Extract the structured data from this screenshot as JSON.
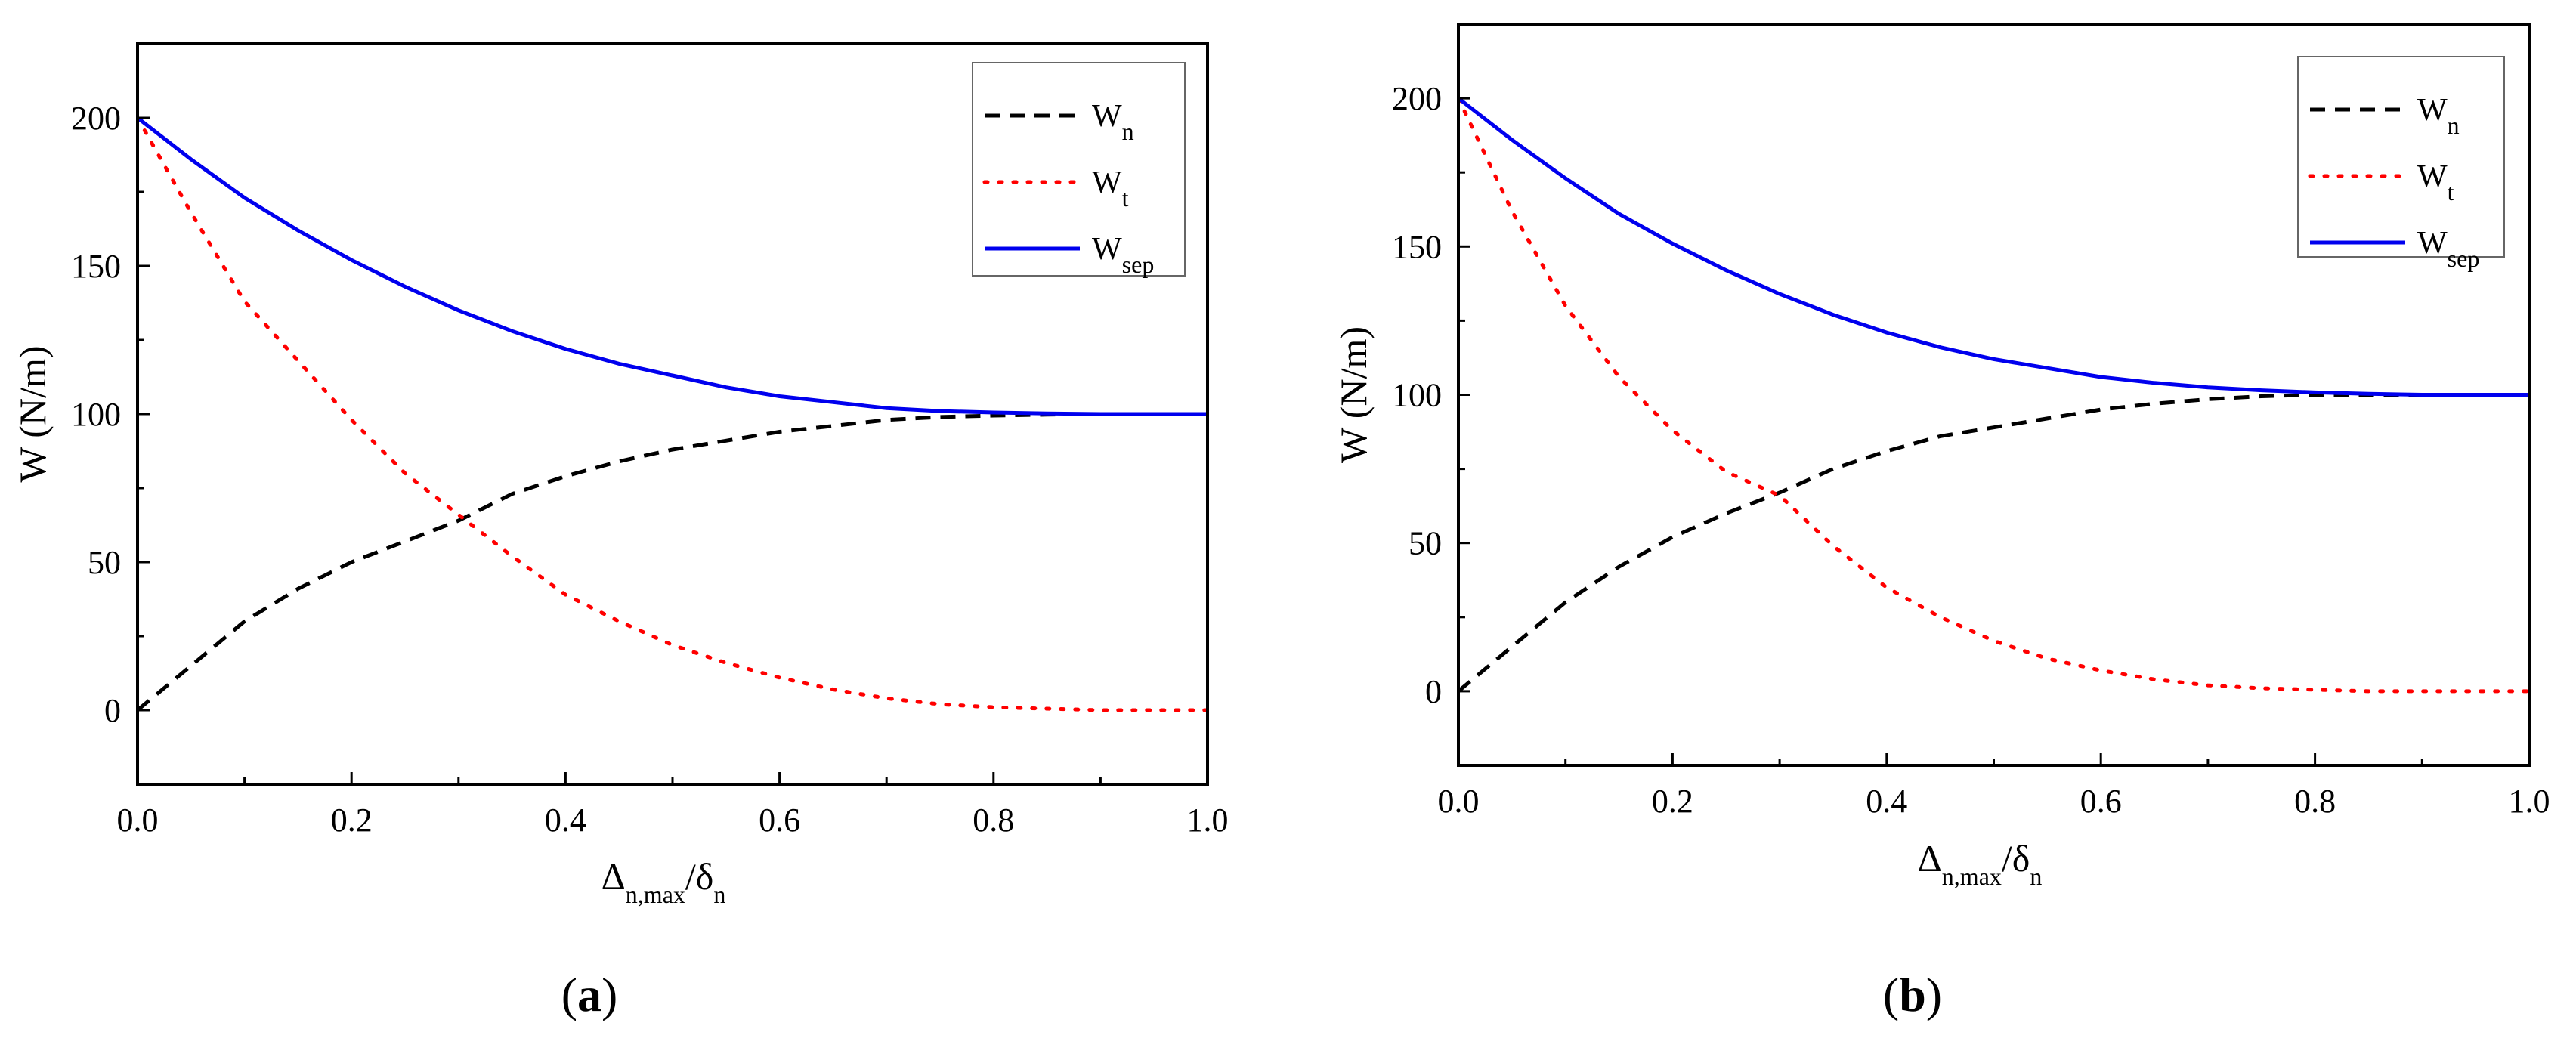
{
  "chart_data": [
    {
      "type": "line",
      "panel_label": {
        "open": "(",
        "letter": "a",
        "close": ")"
      },
      "xlabel": {
        "main": "Δ",
        "sub": "n,max",
        "slash": "/δ",
        "sub2": "n"
      },
      "ylabel": "W (N/m)",
      "xlim": [
        0,
        1
      ],
      "ylim": [
        -25,
        225
      ],
      "xticks": [
        0.0,
        0.2,
        0.4,
        0.6,
        0.8,
        1.0
      ],
      "xtick_labels": [
        "0.0",
        "0.2",
        "0.4",
        "0.6",
        "0.8",
        "1.0"
      ],
      "yticks": [
        0,
        50,
        100,
        150,
        200
      ],
      "ytick_labels": [
        "0",
        "50",
        "100",
        "150",
        "200"
      ],
      "legend_position": "top-right",
      "series": [
        {
          "key": "wn",
          "name": "W",
          "sub": "n",
          "color": "#000000",
          "style": "dashed",
          "x": [
            0,
            0.05,
            0.1,
            0.15,
            0.2,
            0.25,
            0.3,
            0.35,
            0.4,
            0.45,
            0.5,
            0.55,
            0.6,
            0.65,
            0.7,
            0.75,
            0.8,
            0.85,
            0.9,
            0.95,
            1.0
          ],
          "values": [
            0,
            15,
            30,
            41,
            50,
            57,
            64,
            73,
            79,
            84,
            88,
            91,
            94,
            96,
            98,
            99,
            99.5,
            99.8,
            100,
            100,
            100
          ]
        },
        {
          "key": "wt",
          "name": "W",
          "sub": "t",
          "color": "#ff0000",
          "style": "dotted",
          "x": [
            0,
            0.05,
            0.1,
            0.15,
            0.2,
            0.25,
            0.3,
            0.35,
            0.4,
            0.45,
            0.5,
            0.55,
            0.6,
            0.65,
            0.7,
            0.75,
            0.8,
            0.85,
            0.9,
            0.95,
            1.0
          ],
          "values": [
            200,
            168,
            138,
            118,
            98,
            80,
            66,
            52,
            39,
            30,
            22,
            16,
            11,
            7,
            4,
            2,
            1,
            0.5,
            0,
            0,
            0
          ]
        },
        {
          "key": "wsep",
          "name": "W",
          "sub": "sep",
          "color": "#0000ee",
          "style": "solid",
          "x": [
            0,
            0.05,
            0.1,
            0.15,
            0.2,
            0.25,
            0.3,
            0.35,
            0.4,
            0.45,
            0.5,
            0.55,
            0.6,
            0.65,
            0.7,
            0.75,
            0.8,
            0.85,
            0.9,
            0.95,
            1.0
          ],
          "values": [
            200,
            186,
            173,
            162,
            152,
            143,
            135,
            128,
            122,
            117,
            113,
            109,
            106,
            104,
            102,
            101,
            100.5,
            100.2,
            100,
            100,
            100
          ]
        }
      ]
    },
    {
      "type": "line",
      "panel_label": {
        "open": "(",
        "letter": "b",
        "close": ")"
      },
      "xlabel": {
        "main": "Δ",
        "sub": "n,max",
        "slash": "/δ",
        "sub2": "n"
      },
      "ylabel": "W (N/m)",
      "xlim": [
        0,
        1
      ],
      "ylim": [
        -25,
        225
      ],
      "xticks": [
        0.0,
        0.2,
        0.4,
        0.6,
        0.8,
        1.0
      ],
      "xtick_labels": [
        "0.0",
        "0.2",
        "0.4",
        "0.6",
        "0.8",
        "1.0"
      ],
      "yticks": [
        0,
        50,
        100,
        150,
        200
      ],
      "ytick_labels": [
        "0",
        "50",
        "100",
        "150",
        "200"
      ],
      "legend_position": "top-right",
      "series": [
        {
          "key": "wn",
          "name": "W",
          "sub": "n",
          "color": "#000000",
          "style": "dashed",
          "x": [
            0,
            0.05,
            0.1,
            0.15,
            0.2,
            0.25,
            0.3,
            0.35,
            0.4,
            0.45,
            0.5,
            0.55,
            0.6,
            0.65,
            0.7,
            0.75,
            0.8,
            0.85,
            0.9,
            0.95,
            1.0
          ],
          "values": [
            0,
            15,
            30,
            42,
            52,
            60,
            67,
            75,
            81,
            86,
            89,
            92,
            95,
            97,
            98.5,
            99.5,
            100,
            100,
            100,
            100,
            100
          ]
        },
        {
          "key": "wt",
          "name": "W",
          "sub": "t",
          "color": "#ff0000",
          "style": "dotted",
          "x": [
            0,
            0.05,
            0.1,
            0.15,
            0.2,
            0.25,
            0.3,
            0.35,
            0.4,
            0.45,
            0.5,
            0.55,
            0.6,
            0.65,
            0.7,
            0.75,
            0.8,
            0.85,
            0.9,
            0.95,
            1.0
          ],
          "values": [
            200,
            162,
            130,
            106,
            88,
            74,
            66,
            49,
            35,
            25,
            17,
            11,
            7,
            4,
            2,
            1,
            0.5,
            0,
            0,
            0,
            0
          ]
        },
        {
          "key": "wsep",
          "name": "W",
          "sub": "sep",
          "color": "#0000ee",
          "style": "solid",
          "x": [
            0,
            0.05,
            0.1,
            0.15,
            0.2,
            0.25,
            0.3,
            0.35,
            0.4,
            0.45,
            0.5,
            0.55,
            0.6,
            0.65,
            0.7,
            0.75,
            0.8,
            0.85,
            0.9,
            0.95,
            1.0
          ],
          "values": [
            200,
            186,
            173,
            161,
            151,
            142,
            134,
            127,
            121,
            116,
            112,
            109,
            106,
            104,
            102.5,
            101.5,
            100.8,
            100.3,
            100,
            100,
            100
          ]
        }
      ]
    }
  ]
}
